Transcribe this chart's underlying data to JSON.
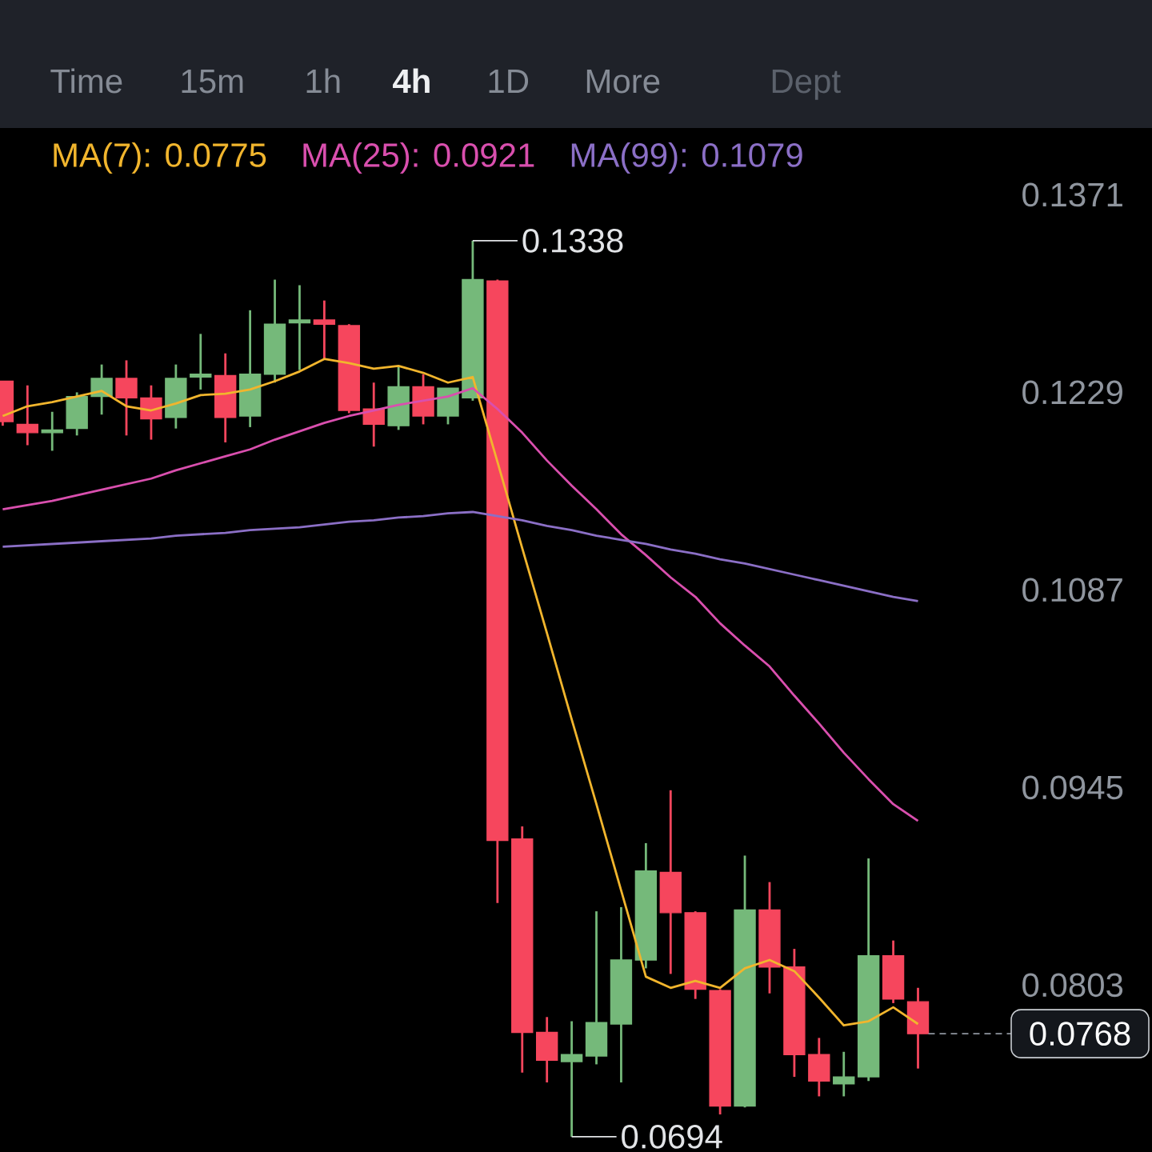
{
  "chart_data": {
    "type": "candlestick",
    "categories": [
      null,
      null,
      null,
      null,
      null,
      null,
      null,
      null,
      null,
      null,
      null,
      null,
      null,
      null,
      null,
      null,
      null,
      null,
      null,
      null,
      null,
      null,
      null,
      null,
      null,
      null,
      null,
      null,
      null,
      null,
      null,
      null,
      null,
      null,
      null,
      null,
      null,
      null
    ],
    "ohlc": [
      [
        0.1237,
        0.1237,
        0.1205,
        0.1208
      ],
      [
        0.1206,
        0.1234,
        0.1191,
        0.12
      ],
      [
        0.12,
        0.1215,
        0.1187,
        0.1202
      ],
      [
        0.1203,
        0.1229,
        0.1198,
        0.1226
      ],
      [
        0.1226,
        0.1249,
        0.1213,
        0.1239
      ],
      [
        0.1239,
        0.1252,
        0.1198,
        0.1225
      ],
      [
        0.1225,
        0.1234,
        0.1195,
        0.121
      ],
      [
        0.1211,
        0.1249,
        0.1203,
        0.1239
      ],
      [
        0.124,
        0.1271,
        0.1231,
        0.1242
      ],
      [
        0.1241,
        0.1257,
        0.1193,
        0.1211
      ],
      [
        0.1212,
        0.1288,
        0.1204,
        0.1242
      ],
      [
        0.1242,
        0.131,
        0.1236,
        0.1278
      ],
      [
        0.1279,
        0.1306,
        0.1245,
        0.1281
      ],
      [
        0.1281,
        0.1295,
        0.1253,
        0.1278
      ],
      [
        0.1277,
        0.1278,
        0.1214,
        0.1216
      ],
      [
        0.1217,
        0.1236,
        0.119,
        0.1206
      ],
      [
        0.1205,
        0.1248,
        0.1202,
        0.1233
      ],
      [
        0.1233,
        0.1242,
        0.1206,
        0.1212
      ],
      [
        0.1212,
        0.1232,
        0.1206,
        0.1232
      ],
      [
        0.1225,
        0.1338,
        0.1223,
        0.131
      ],
      [
        0.1309,
        0.131,
        0.0862,
        0.0907
      ],
      [
        0.0908,
        0.0917,
        0.074,
        0.0769
      ],
      [
        0.0769,
        0.078,
        0.0733,
        0.0749
      ],
      [
        0.0748,
        0.0777,
        0.0694,
        0.0753
      ],
      [
        0.0752,
        0.0856,
        0.0746,
        0.0776
      ],
      [
        0.0775,
        0.0859,
        0.0733,
        0.0821
      ],
      [
        0.0821,
        0.0905,
        0.0815,
        0.0885
      ],
      [
        0.0884,
        0.0943,
        0.0811,
        0.0855
      ],
      [
        0.0855,
        0.0856,
        0.0793,
        0.08
      ],
      [
        0.0799,
        0.08,
        0.071,
        0.0716
      ],
      [
        0.0716,
        0.0896,
        0.0715,
        0.0857
      ],
      [
        0.0857,
        0.0877,
        0.0797,
        0.0816
      ],
      [
        0.0816,
        0.0829,
        0.0737,
        0.0753
      ],
      [
        0.0753,
        0.0765,
        0.0723,
        0.0734
      ],
      [
        0.0732,
        0.0755,
        0.0723,
        0.0737
      ],
      [
        0.0737,
        0.0894,
        0.0734,
        0.0824
      ],
      [
        0.0824,
        0.0835,
        0.079,
        0.0793
      ],
      [
        0.0791,
        0.0801,
        0.0743,
        0.0768
      ]
    ],
    "colors": [
      "#f6465d",
      "#f6465d",
      "#75b97a",
      "#75b97a",
      "#75b97a",
      "#f6465d",
      "#f6465d",
      "#75b97a",
      "#75b97a",
      "#f6465d",
      "#75b97a",
      "#75b97a",
      "#75b97a",
      "#f6465d",
      "#f6465d",
      "#f6465d",
      "#75b97a",
      "#f6465d",
      "#75b97a",
      "#75b97a",
      "#f6465d",
      "#f6465d",
      "#f6465d",
      "#75b97a",
      "#75b97a",
      "#75b97a",
      "#75b97a",
      "#f6465d",
      "#f6465d",
      "#f6465d",
      "#75b97a",
      "#f6465d",
      "#f6465d",
      "#f6465d",
      "#75b97a",
      "#75b97a",
      "#f6465d",
      "#f6465d"
    ],
    "series": [
      {
        "name": "MA(7): 0.0775",
        "type": "line",
        "color": "#f1b52d",
        "values": [
          0.1212,
          0.1219,
          0.1222,
          0.1226,
          0.123,
          0.1219,
          0.1216,
          0.1221,
          0.1227,
          0.1228,
          0.1231,
          0.1237,
          0.1244,
          0.1253,
          0.125,
          0.1246,
          0.1248,
          0.1243,
          0.1236,
          0.124,
          0.1179,
          0.1117,
          0.1056,
          0.0994,
          0.0933,
          0.0871,
          0.0809,
          0.0801,
          0.0806,
          0.0801,
          0.0815,
          0.0821,
          0.0813,
          0.0794,
          0.0774,
          0.0777,
          0.0787,
          0.0775
        ]
      },
      {
        "name": "MA(25): 0.0921",
        "type": "line",
        "color": "#d94fae",
        "values": [
          0.1145,
          0.1148,
          0.1151,
          0.1155,
          0.1159,
          0.1163,
          0.1167,
          0.1173,
          0.1178,
          0.1183,
          0.1188,
          0.1195,
          0.1201,
          0.1207,
          0.1212,
          0.1216,
          0.122,
          0.1223,
          0.1226,
          0.1232,
          0.1217,
          0.12,
          0.118,
          0.1162,
          0.1145,
          0.1127,
          0.1112,
          0.1096,
          0.1082,
          0.1063,
          0.1047,
          0.1032,
          0.1011,
          0.0991,
          0.097,
          0.0951,
          0.0933,
          0.0921
        ]
      },
      {
        "name": "MA(99): 0.1079",
        "type": "line",
        "color": "#8b6fc6",
        "values": [
          0.1118,
          0.1119,
          0.112,
          0.1121,
          0.1122,
          0.1123,
          0.1124,
          0.1126,
          0.1127,
          0.1128,
          0.113,
          0.1131,
          0.1132,
          0.1134,
          0.1136,
          0.1137,
          0.1139,
          0.114,
          0.1142,
          0.1143,
          0.114,
          0.1137,
          0.1133,
          0.113,
          0.1126,
          0.1123,
          0.112,
          0.1116,
          0.1113,
          0.1109,
          0.1106,
          0.1102,
          0.1098,
          0.1094,
          0.109,
          0.1086,
          0.1082,
          0.1079
        ]
      }
    ],
    "ylim": [
      0.0683,
      0.1419
    ],
    "yticks": [
      0.0803,
      0.0945,
      0.1087,
      0.1229,
      0.1371
    ],
    "tick_labels": "y",
    "legend": "top left",
    "annotations": [
      "Time",
      "15m",
      "1h",
      "4h",
      "1D",
      "More",
      "Dept",
      "0.1338",
      "0.0694",
      "0.0768"
    ]
  }
}
